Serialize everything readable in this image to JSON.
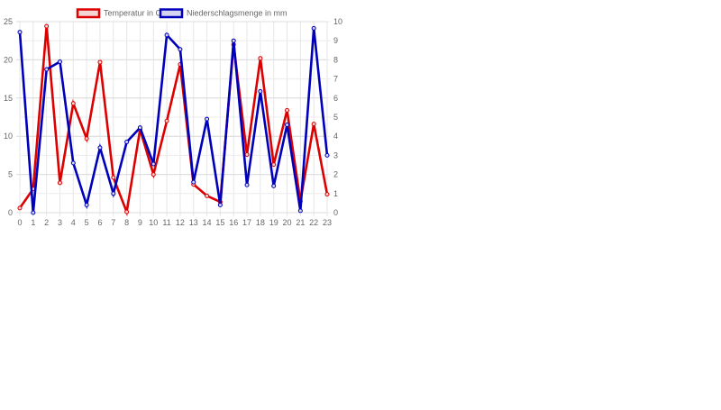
{
  "chart_data": {
    "type": "line",
    "title": "",
    "categories": [
      "0",
      "1",
      "2",
      "3",
      "4",
      "5",
      "6",
      "7",
      "8",
      "9",
      "10",
      "11",
      "12",
      "13",
      "14",
      "15",
      "16",
      "17",
      "18",
      "19",
      "20",
      "21",
      "22",
      "23"
    ],
    "x": [
      0,
      1,
      2,
      3,
      4,
      5,
      6,
      7,
      8,
      9,
      10,
      11,
      12,
      13,
      14,
      15,
      16,
      17,
      18,
      19,
      20,
      21,
      22,
      23
    ],
    "series": [
      {
        "name": "Temperatur in C°",
        "axis": "left",
        "color": "#dd0000",
        "fill": "#f5d4d4",
        "values": [
          0.6,
          3.1,
          24.4,
          3.9,
          14.3,
          9.7,
          19.7,
          4.6,
          0.1,
          10.9,
          5.0,
          12.0,
          19.4,
          3.7,
          2.2,
          1.4,
          22.0,
          7.6,
          20.2,
          6.3,
          13.4,
          1.5,
          11.6,
          2.4
        ]
      },
      {
        "name": "Niederschlagsmenge in mm",
        "axis": "right",
        "color": "#0000bb",
        "fill": "#d4d4f0",
        "values": [
          9.45,
          0.0,
          7.5,
          7.9,
          2.6,
          0.4,
          3.4,
          1.0,
          3.7,
          4.45,
          2.55,
          9.3,
          8.55,
          1.6,
          4.9,
          0.4,
          9.0,
          1.45,
          6.35,
          1.4,
          4.6,
          0.1,
          9.65,
          3.0
        ]
      }
    ],
    "xlabel": "",
    "ylabel": "",
    "y2label": "",
    "ylim": [
      0,
      25
    ],
    "y2lim": [
      0,
      10
    ],
    "yticks": [
      0,
      5,
      10,
      15,
      20,
      25
    ],
    "y2ticks": [
      0,
      1,
      2,
      3,
      4,
      5,
      6,
      7,
      8,
      9,
      10
    ],
    "grid": true,
    "legend_position": "top"
  },
  "legend": {
    "items": [
      {
        "label": "Temperatur in C°"
      },
      {
        "label": "Niederschlagsmenge in mm"
      }
    ]
  }
}
